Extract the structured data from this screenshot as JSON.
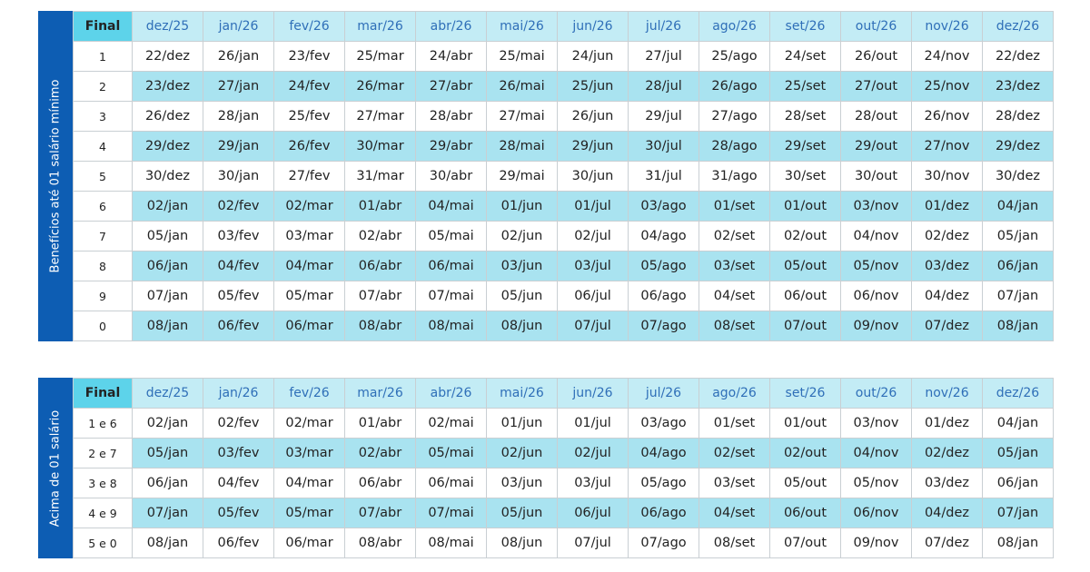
{
  "months": [
    "dez/25",
    "jan/26",
    "fev/26",
    "mar/26",
    "abr/26",
    "mai/26",
    "jun/26",
    "jul/26",
    "ago/26",
    "set/26",
    "out/26",
    "nov/26",
    "dez/26"
  ],
  "colors": {
    "sidebar": "#0d5db3",
    "final_header": "#5dd3ea",
    "month_header": "#c3ecf5",
    "stripe": "#a9e3f0"
  },
  "tables": [
    {
      "side_label": "Benefícios até 01 salário mínimo",
      "final_header": "Final",
      "rows": [
        {
          "final": "1",
          "dates": [
            "22/dez",
            "26/jan",
            "23/fev",
            "25/mar",
            "24/abr",
            "25/mai",
            "24/jun",
            "27/jul",
            "25/ago",
            "24/set",
            "26/out",
            "24/nov",
            "22/dez"
          ]
        },
        {
          "final": "2",
          "dates": [
            "23/dez",
            "27/jan",
            "24/fev",
            "26/mar",
            "27/abr",
            "26/mai",
            "25/jun",
            "28/jul",
            "26/ago",
            "25/set",
            "27/out",
            "25/nov",
            "23/dez"
          ]
        },
        {
          "final": "3",
          "dates": [
            "26/dez",
            "28/jan",
            "25/fev",
            "27/mar",
            "28/abr",
            "27/mai",
            "26/jun",
            "29/jul",
            "27/ago",
            "28/set",
            "28/out",
            "26/nov",
            "28/dez"
          ]
        },
        {
          "final": "4",
          "dates": [
            "29/dez",
            "29/jan",
            "26/fev",
            "30/mar",
            "29/abr",
            "28/mai",
            "29/jun",
            "30/jul",
            "28/ago",
            "29/set",
            "29/out",
            "27/nov",
            "29/dez"
          ]
        },
        {
          "final": "5",
          "dates": [
            "30/dez",
            "30/jan",
            "27/fev",
            "31/mar",
            "30/abr",
            "29/mai",
            "30/jun",
            "31/jul",
            "31/ago",
            "30/set",
            "30/out",
            "30/nov",
            "30/dez"
          ]
        },
        {
          "final": "6",
          "dates": [
            "02/jan",
            "02/fev",
            "02/mar",
            "01/abr",
            "04/mai",
            "01/jun",
            "01/jul",
            "03/ago",
            "01/set",
            "01/out",
            "03/nov",
            "01/dez",
            "04/jan"
          ]
        },
        {
          "final": "7",
          "dates": [
            "05/jan",
            "03/fev",
            "03/mar",
            "02/abr",
            "05/mai",
            "02/jun",
            "02/jul",
            "04/ago",
            "02/set",
            "02/out",
            "04/nov",
            "02/dez",
            "05/jan"
          ]
        },
        {
          "final": "8",
          "dates": [
            "06/jan",
            "04/fev",
            "04/mar",
            "06/abr",
            "06/mai",
            "03/jun",
            "03/jul",
            "05/ago",
            "03/set",
            "05/out",
            "05/nov",
            "03/dez",
            "06/jan"
          ]
        },
        {
          "final": "9",
          "dates": [
            "07/jan",
            "05/fev",
            "05/mar",
            "07/abr",
            "07/mai",
            "05/jun",
            "06/jul",
            "06/ago",
            "04/set",
            "06/out",
            "06/nov",
            "04/dez",
            "07/jan"
          ]
        },
        {
          "final": "0",
          "dates": [
            "08/jan",
            "06/fev",
            "06/mar",
            "08/abr",
            "08/mai",
            "08/jun",
            "07/jul",
            "07/ago",
            "08/set",
            "07/out",
            "09/nov",
            "07/dez",
            "08/jan"
          ]
        }
      ]
    },
    {
      "side_label": "Acima de 01 salário",
      "final_header": "Final",
      "rows": [
        {
          "final": "1 e 6",
          "dates": [
            "02/jan",
            "02/fev",
            "02/mar",
            "01/abr",
            "02/mai",
            "01/jun",
            "01/jul",
            "03/ago",
            "01/set",
            "01/out",
            "03/nov",
            "01/dez",
            "04/jan"
          ]
        },
        {
          "final": "2 e 7",
          "dates": [
            "05/jan",
            "03/fev",
            "03/mar",
            "02/abr",
            "05/mai",
            "02/jun",
            "02/jul",
            "04/ago",
            "02/set",
            "02/out",
            "04/nov",
            "02/dez",
            "05/jan"
          ]
        },
        {
          "final": "3 e 8",
          "dates": [
            "06/jan",
            "04/fev",
            "04/mar",
            "06/abr",
            "06/mai",
            "03/jun",
            "03/jul",
            "05/ago",
            "03/set",
            "05/out",
            "05/nov",
            "03/dez",
            "06/jan"
          ]
        },
        {
          "final": "4 e 9",
          "dates": [
            "07/jan",
            "05/fev",
            "05/mar",
            "07/abr",
            "07/mai",
            "05/jun",
            "06/jul",
            "06/ago",
            "04/set",
            "06/out",
            "06/nov",
            "04/dez",
            "07/jan"
          ]
        },
        {
          "final": "5 e 0",
          "dates": [
            "08/jan",
            "06/fev",
            "06/mar",
            "08/abr",
            "08/mai",
            "08/jun",
            "07/jul",
            "07/ago",
            "08/set",
            "07/out",
            "09/nov",
            "07/dez",
            "08/jan"
          ]
        }
      ]
    }
  ]
}
